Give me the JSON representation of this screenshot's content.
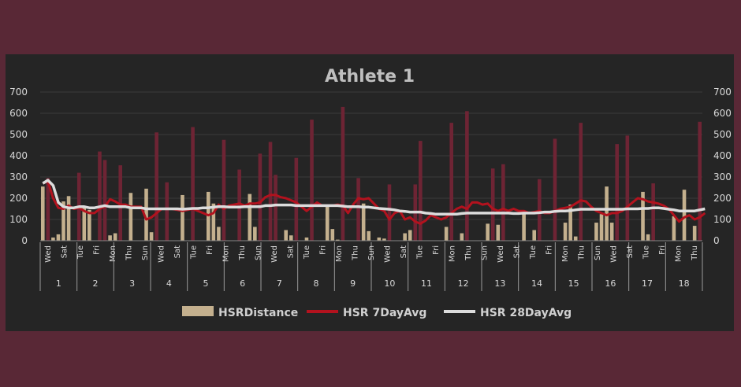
{
  "chart_data": {
    "type": "bar+line",
    "title": "Athlete 1",
    "ylim": [
      0,
      700
    ],
    "y_ticks": [
      0,
      100,
      200,
      300,
      400,
      500,
      600,
      700
    ],
    "weeks": [
      "1",
      "2",
      "3",
      "4",
      "5",
      "6",
      "7",
      "8",
      "9",
      "10",
      "11",
      "12",
      "13",
      "14",
      "15",
      "16",
      "17",
      "18"
    ],
    "day_labels": [
      "Wed",
      "Sat",
      "Tue",
      "Fri",
      "Mon",
      "Thu",
      "Sun",
      "Wed",
      "Sat",
      "Tue",
      "Fri",
      "Mon",
      "Thu",
      "Sun",
      "Wed",
      "Sat",
      "Tue",
      "Fri",
      "Mon",
      "Thu",
      "Sun",
      "Wed",
      "Sat",
      "Tue",
      "Fri",
      "Mon",
      "Thu",
      "Sun",
      "Wed",
      "Sat",
      "Tue",
      "Fri",
      "Mon",
      "Thu",
      "Sun",
      "Wed",
      "Sat",
      "Tue",
      "Fri",
      "Mon",
      "Thu"
    ],
    "legend": [
      "HSRDistance",
      "HSR 7DayAvg",
      "HSR 28DayAvg"
    ],
    "colors": {
      "bar": "#c4b08e",
      "bar_high": "#6e2434",
      "line7": "#b3121e",
      "line28": "#dcdcdc"
    },
    "high_threshold": 260,
    "series": [
      {
        "name": "HSRDistance",
        "type": "bar",
        "values": [
          255,
          295,
          15,
          30,
          185,
          210,
          0,
          320,
          165,
          145,
          0,
          420,
          380,
          25,
          35,
          355,
          0,
          225,
          0,
          0,
          245,
          40,
          510,
          0,
          275,
          0,
          0,
          215,
          0,
          535,
          0,
          0,
          230,
          175,
          65,
          475,
          0,
          0,
          335,
          0,
          220,
          65,
          410,
          0,
          465,
          310,
          0,
          50,
          25,
          390,
          0,
          15,
          570,
          0,
          0,
          170,
          55,
          5,
          630,
          0,
          0,
          295,
          175,
          45,
          0,
          15,
          10,
          265,
          0,
          0,
          35,
          50,
          265,
          470,
          0,
          0,
          0,
          0,
          65,
          555,
          0,
          35,
          610,
          0,
          0,
          0,
          80,
          340,
          75,
          360,
          0,
          0,
          0,
          130,
          0,
          50,
          290,
          0,
          0,
          480,
          0,
          85,
          170,
          20,
          555,
          0,
          0,
          85,
          125,
          255,
          85,
          455,
          0,
          495,
          0,
          0,
          230,
          30,
          270,
          0,
          0,
          0,
          115,
          0,
          240,
          0,
          70,
          560
        ]
      },
      {
        "name": "HSR 7DayAvg",
        "type": "line",
        "values": [
          270,
          280,
          200,
          155,
          150,
          165,
          150,
          155,
          140,
          130,
          130,
          150,
          160,
          195,
          185,
          170,
          170,
          160,
          160,
          160,
          100,
          110,
          130,
          150,
          150,
          150,
          145,
          140,
          145,
          150,
          140,
          130,
          120,
          130,
          170,
          150,
          165,
          170,
          175,
          165,
          175,
          175,
          180,
          205,
          215,
          215,
          205,
          200,
          190,
          180,
          160,
          140,
          160,
          180,
          165,
          165,
          165,
          170,
          165,
          130,
          170,
          200,
          195,
          200,
          175,
          150,
          140,
          100,
          130,
          140,
          100,
          110,
          90,
          80,
          95,
          120,
          110,
          100,
          110,
          130,
          150,
          160,
          150,
          180,
          180,
          170,
          175,
          150,
          140,
          150,
          140,
          150,
          140,
          140,
          130,
          135,
          140,
          130,
          130,
          140,
          150,
          155,
          160,
          175,
          190,
          185,
          160,
          140,
          130,
          120,
          130,
          130,
          140,
          160,
          180,
          200,
          195,
          185,
          180,
          175,
          165,
          150,
          120,
          90,
          110,
          120,
          100,
          110,
          130
        ]
      },
      {
        "name": "HSR 28DayAvg",
        "type": "line",
        "values": [
          270,
          285,
          260,
          180,
          160,
          155,
          155,
          160,
          160,
          155,
          155,
          160,
          165,
          160,
          160,
          160,
          160,
          155,
          155,
          155,
          150,
          150,
          150,
          150,
          150,
          150,
          150,
          148,
          150,
          152,
          152,
          155,
          155,
          158,
          160,
          160,
          158,
          158,
          158,
          160,
          160,
          160,
          160,
          165,
          165,
          168,
          168,
          168,
          168,
          165,
          165,
          165,
          165,
          165,
          165,
          165,
          165,
          165,
          163,
          160,
          160,
          160,
          158,
          158,
          155,
          152,
          150,
          148,
          145,
          140,
          138,
          135,
          135,
          135,
          130,
          128,
          125,
          125,
          125,
          125,
          125,
          128,
          130,
          130,
          130,
          130,
          130,
          130,
          130,
          130,
          130,
          128,
          128,
          130,
          130,
          130,
          132,
          135,
          135,
          138,
          140,
          140,
          142,
          145,
          148,
          148,
          148,
          148,
          148,
          148,
          148,
          148,
          148,
          150,
          150,
          150,
          152,
          152,
          155,
          155,
          152,
          148,
          145,
          140,
          140,
          140,
          140,
          145,
          150
        ]
      }
    ]
  }
}
